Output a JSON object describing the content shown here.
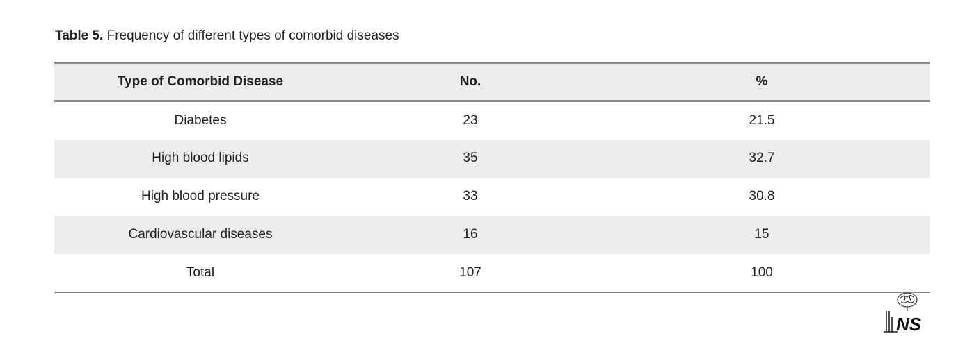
{
  "caption": {
    "label": "Table 5.",
    "text": " Frequency of different types of comorbid diseases"
  },
  "table": {
    "headers": [
      "Type of Comorbid Disease",
      "No.",
      "%"
    ],
    "rows": [
      [
        "Diabetes",
        "23",
        "21.5"
      ],
      [
        "High blood lipids",
        "35",
        "32.7"
      ],
      [
        "High blood pressure",
        "33",
        "30.8"
      ],
      [
        "Cardiovascular diseases",
        "16",
        "15"
      ],
      [
        "Total",
        "107",
        "100"
      ]
    ]
  },
  "logo": {
    "text": "NS",
    "icon": "journal-logo-icon"
  },
  "colors": {
    "header_bg": "#ececec",
    "rule": "#8a8a8a",
    "text": "#1f1f1f"
  }
}
